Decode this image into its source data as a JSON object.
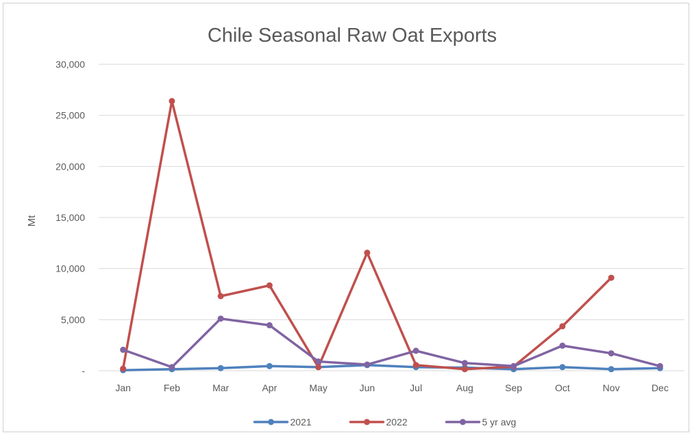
{
  "chart_data": {
    "type": "line",
    "title": "Chile Seasonal Raw Oat Exports",
    "ylabel": "Mt",
    "xlabel": "",
    "categories": [
      "Jan",
      "Feb",
      "Mar",
      "Apr",
      "May",
      "Jun",
      "Jul",
      "Aug",
      "Sep",
      "Oct",
      "Nov",
      "Dec"
    ],
    "ylim": [
      0,
      30000
    ],
    "y_ticks": [
      0,
      5000,
      10000,
      15000,
      20000,
      25000,
      30000
    ],
    "y_tick_labels": [
      "-",
      "5,000",
      "10,000",
      "15,000",
      "20,000",
      "25,000",
      "30,000"
    ],
    "grid": true,
    "legend_position": "bottom",
    "series": [
      {
        "name": "2021",
        "color": "#4f81bd",
        "values": [
          50,
          150,
          250,
          450,
          350,
          550,
          350,
          300,
          150,
          350,
          150,
          250
        ]
      },
      {
        "name": "2022",
        "color": "#c0504d",
        "values": [
          200,
          26400,
          7300,
          8350,
          350,
          11550,
          550,
          150,
          400,
          4350,
          9100,
          null
        ]
      },
      {
        "name": "5 yr avg",
        "color": "#8064a2",
        "values": [
          2050,
          350,
          5100,
          4450,
          900,
          600,
          1950,
          750,
          450,
          2450,
          1700,
          450
        ]
      }
    ]
  }
}
